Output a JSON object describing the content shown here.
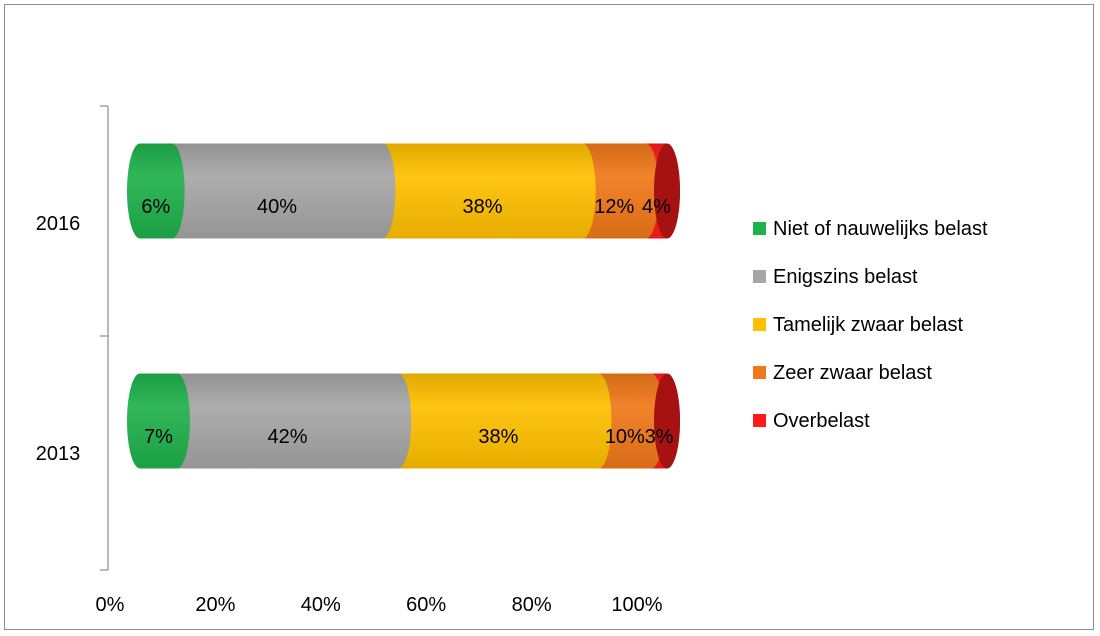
{
  "chart_data": {
    "type": "bar",
    "orientation": "horizontal",
    "stacked": "percent",
    "style": "3d-cylinder",
    "categories": [
      "2016",
      "2013"
    ],
    "series": [
      {
        "name": "Niet of nauwelijks belast",
        "color": "#1fb14c",
        "values": [
          6,
          7
        ],
        "labels": [
          "6%",
          "7%"
        ]
      },
      {
        "name": "Enigszins belast",
        "color": "#a6a6a6",
        "values": [
          40,
          42
        ],
        "labels": [
          "40%",
          "42%"
        ]
      },
      {
        "name": "Tamelijk zwaar belast",
        "color": "#ffc000",
        "values": [
          38,
          38
        ],
        "labels": [
          "38%",
          "38%"
        ]
      },
      {
        "name": "Zeer zwaar belast",
        "color": "#f07818",
        "values": [
          12,
          10
        ],
        "labels": [
          "12%",
          "10%"
        ]
      },
      {
        "name": "Overbelast",
        "color": "#ff1a1a",
        "values": [
          4,
          3
        ],
        "labels": [
          "4%",
          "3%"
        ]
      }
    ],
    "x_ticks": [
      "0%",
      "20%",
      "40%",
      "60%",
      "80%",
      "100%"
    ],
    "xlim": [
      0,
      100
    ],
    "legend_position": "right",
    "grid": false
  }
}
